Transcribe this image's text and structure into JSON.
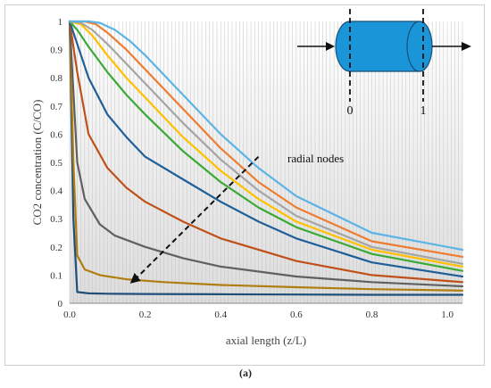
{
  "caption": "(a)",
  "chart_data": {
    "type": "line",
    "ylabel": "CO2 concentration (C/CO)",
    "xlabel": "axial length (z/L)",
    "xlim": [
      0,
      1.04
    ],
    "ylim": [
      0,
      1
    ],
    "xticks": [
      "0.0",
      "0.2",
      "0.4",
      "0.6",
      "0.8",
      "1.0"
    ],
    "yticks": [
      "0",
      "0.1",
      "0.2",
      "0.3",
      "0.4",
      "0.5",
      "0.6",
      "0.7",
      "0.8",
      "0.9",
      "1"
    ],
    "grid": "vertical minor lines at every axial node",
    "annotation": "radial nodes",
    "series": [
      {
        "color": "#1f4e79",
        "x": [
          0,
          0.01,
          0.02,
          0.05,
          0.1,
          0.2,
          0.4,
          0.6,
          0.8,
          1.04
        ],
        "y": [
          1,
          0.3,
          0.04,
          0.035,
          0.034,
          0.033,
          0.032,
          0.031,
          0.03,
          0.03
        ]
      },
      {
        "color": "#b07d10",
        "x": [
          0,
          0.01,
          0.02,
          0.04,
          0.08,
          0.15,
          0.25,
          0.4,
          0.6,
          0.8,
          1.04
        ],
        "y": [
          1,
          0.5,
          0.17,
          0.12,
          0.1,
          0.085,
          0.075,
          0.065,
          0.057,
          0.05,
          0.045
        ]
      },
      {
        "color": "#606060",
        "x": [
          0,
          0.02,
          0.04,
          0.08,
          0.12,
          0.2,
          0.3,
          0.4,
          0.6,
          0.8,
          1.04
        ],
        "y": [
          1,
          0.5,
          0.37,
          0.28,
          0.24,
          0.2,
          0.16,
          0.13,
          0.095,
          0.075,
          0.06
        ]
      },
      {
        "color": "#c0501a",
        "x": [
          0,
          0.02,
          0.05,
          0.1,
          0.15,
          0.2,
          0.3,
          0.4,
          0.6,
          0.8,
          1.04
        ],
        "y": [
          1,
          0.82,
          0.6,
          0.48,
          0.41,
          0.36,
          0.29,
          0.23,
          0.15,
          0.1,
          0.075
        ]
      },
      {
        "color": "#1f5f99",
        "x": [
          0,
          0.02,
          0.05,
          0.1,
          0.15,
          0.2,
          0.3,
          0.4,
          0.5,
          0.6,
          0.8,
          1.04
        ],
        "y": [
          1,
          0.92,
          0.8,
          0.67,
          0.59,
          0.52,
          0.44,
          0.36,
          0.29,
          0.23,
          0.145,
          0.095
        ]
      },
      {
        "color": "#3aaa35",
        "x": [
          0,
          0.02,
          0.05,
          0.1,
          0.15,
          0.2,
          0.3,
          0.4,
          0.5,
          0.6,
          0.8,
          1.04
        ],
        "y": [
          1,
          0.97,
          0.91,
          0.82,
          0.74,
          0.67,
          0.54,
          0.43,
          0.34,
          0.27,
          0.175,
          0.115
        ]
      },
      {
        "color": "#ffc000",
        "x": [
          0,
          0.03,
          0.06,
          0.1,
          0.15,
          0.2,
          0.3,
          0.4,
          0.5,
          0.6,
          0.8,
          1.04
        ],
        "y": [
          1,
          0.99,
          0.95,
          0.88,
          0.8,
          0.73,
          0.59,
          0.47,
          0.37,
          0.29,
          0.19,
          0.13
        ]
      },
      {
        "color": "#a5a5a5",
        "x": [
          0,
          0.03,
          0.06,
          0.1,
          0.15,
          0.2,
          0.3,
          0.4,
          0.5,
          0.6,
          0.8,
          1.04
        ],
        "y": [
          1,
          0.995,
          0.97,
          0.92,
          0.85,
          0.78,
          0.64,
          0.51,
          0.4,
          0.31,
          0.2,
          0.14
        ]
      },
      {
        "color": "#ed7d31",
        "x": [
          0,
          0.04,
          0.07,
          0.1,
          0.15,
          0.2,
          0.3,
          0.4,
          0.5,
          0.6,
          0.8,
          1.04
        ],
        "y": [
          1,
          1,
          0.99,
          0.96,
          0.9,
          0.83,
          0.69,
          0.55,
          0.43,
          0.34,
          0.22,
          0.165
        ]
      },
      {
        "color": "#5bb4e5",
        "x": [
          0,
          0.05,
          0.08,
          0.12,
          0.16,
          0.2,
          0.3,
          0.4,
          0.5,
          0.6,
          0.8,
          1.04
        ],
        "y": [
          1,
          1,
          0.995,
          0.97,
          0.93,
          0.88,
          0.74,
          0.6,
          0.48,
          0.38,
          0.25,
          0.19
        ]
      }
    ]
  },
  "inset": {
    "left_label": "0",
    "right_label": "1",
    "body_color": "#1a95d8"
  }
}
